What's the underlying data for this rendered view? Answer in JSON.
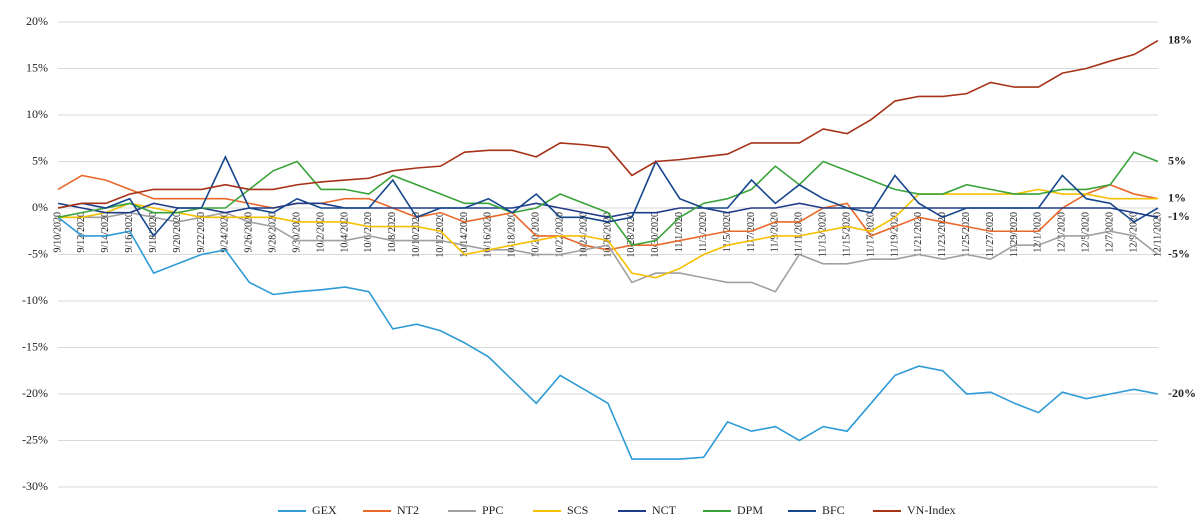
{
  "chart_data": {
    "type": "line",
    "categories": [
      "9/10/2020",
      "9/12/2020",
      "9/14/2020",
      "9/16/2020",
      "9/18/2020",
      "9/20/2020",
      "9/22/2020",
      "9/24/2020",
      "9/26/2020",
      "9/28/2020",
      "9/30/2020",
      "10/2/2020",
      "10/4/2020",
      "10/6/2020",
      "10/8/2020",
      "10/10/2020",
      "10/12/2020",
      "10/14/2020",
      "10/16/2020",
      "10/18/2020",
      "10/20/2020",
      "10/22/2020",
      "10/24/2020",
      "10/26/2020",
      "10/28/2020",
      "10/30/2020",
      "11/1/2020",
      "11/3/2020",
      "11/5/2020",
      "11/7/2020",
      "11/9/2020",
      "11/11/2020",
      "11/13/2020",
      "11/15/2020",
      "11/17/2020",
      "11/19/2020",
      "11/21/2020",
      "11/23/2020",
      "11/25/2020",
      "11/27/2020",
      "11/29/2020",
      "12/1/2020",
      "12/3/2020",
      "12/5/2020",
      "12/7/2020",
      "12/9/2020",
      "12/11/2020"
    ],
    "series": [
      {
        "name": "GEX",
        "color": "#2e9bd6",
        "values": [
          -1,
          -3,
          -3,
          -2.5,
          -7,
          -6,
          -5,
          -4.5,
          -8,
          -9.3,
          -9,
          -8.8,
          -8.5,
          -9,
          -13,
          -12.5,
          -13.2,
          -14.5,
          -16,
          -18.5,
          -21,
          -18,
          -19.5,
          -21,
          -27,
          -27,
          -27,
          -26.8,
          -23,
          -24,
          -23.5,
          -25,
          -23.5,
          -24,
          -21,
          -18,
          -17,
          -17.5,
          -20,
          -19.8,
          -21,
          -22,
          -19.8,
          -20.5,
          -20,
          -19.5,
          -20
        ],
        "value_labels": [
          null,
          null,
          null,
          null,
          null,
          null,
          null,
          null,
          null,
          null,
          null,
          null,
          null,
          null,
          null,
          null,
          null,
          null,
          null,
          null,
          null,
          null,
          null,
          null,
          null,
          null,
          null,
          null,
          null,
          null,
          null,
          null,
          null,
          null,
          null,
          null,
          null,
          null,
          null,
          null,
          null,
          null,
          null,
          null,
          null,
          null,
          "-20%"
        ]
      },
      {
        "name": "NT2",
        "color": "#e8692a",
        "values": [
          2,
          3.5,
          3,
          2,
          1,
          1,
          1,
          1,
          0.5,
          0,
          0.5,
          0.5,
          1,
          1,
          0,
          -1,
          -0.5,
          -1.5,
          -1,
          -0.5,
          -3,
          -3,
          -4,
          -4.5,
          -4,
          -4,
          -3.5,
          -3,
          -2.5,
          -2.5,
          -1.5,
          -1.5,
          0,
          0.5,
          -3,
          -2,
          -1,
          -1.5,
          -2,
          -2.5,
          -2.5,
          -2.5,
          0,
          1.5,
          2.5,
          1.5,
          1
        ],
        "value_labels": [
          null,
          null,
          null,
          null,
          null,
          null,
          null,
          null,
          null,
          null,
          null,
          null,
          null,
          null,
          null,
          null,
          null,
          null,
          null,
          null,
          null,
          null,
          null,
          null,
          null,
          null,
          null,
          null,
          null,
          null,
          null,
          null,
          null,
          null,
          null,
          null,
          null,
          null,
          null,
          null,
          null,
          null,
          null,
          null,
          null,
          null,
          "1%"
        ]
      },
      {
        "name": "PPC",
        "color": "#a0a0a0",
        "values": [
          -1,
          -1,
          -1,
          -0.5,
          -1,
          -1.5,
          -1,
          -0.5,
          -1.5,
          -2,
          -3.5,
          -3.5,
          -3.5,
          -3,
          -3.5,
          -3.5,
          -3.5,
          -4,
          -4.5,
          -4.5,
          -5,
          -5,
          -4.5,
          -4,
          -8,
          -7,
          -7,
          -7.5,
          -8,
          -8,
          -9,
          -5,
          -6,
          -6,
          -5.5,
          -5.5,
          -5,
          -5.5,
          -5,
          -5.5,
          -4,
          -4,
          -3,
          -3,
          -2.5,
          -3,
          -5
        ],
        "value_labels": [
          null,
          null,
          null,
          null,
          null,
          null,
          null,
          null,
          null,
          null,
          null,
          null,
          null,
          null,
          null,
          null,
          null,
          null,
          null,
          null,
          null,
          null,
          null,
          null,
          null,
          null,
          null,
          null,
          null,
          null,
          null,
          null,
          null,
          null,
          null,
          null,
          null,
          null,
          null,
          null,
          null,
          null,
          null,
          null,
          null,
          null,
          "-5%"
        ]
      },
      {
        "name": "SCS",
        "color": "#f5c000",
        "values": [
          -1,
          -1,
          -0.5,
          0.5,
          0,
          -0.5,
          -1,
          -1,
          -1,
          -1,
          -1.5,
          -1.5,
          -1.5,
          -2,
          -2,
          -2,
          -2.5,
          -5,
          -4.5,
          -4,
          -3.5,
          -3,
          -3,
          -3.5,
          -7,
          -7.5,
          -6.5,
          -5,
          -4,
          -3.5,
          -3,
          -3,
          -2.5,
          -2,
          -2.5,
          -1,
          1.5,
          1.5,
          1.5,
          1.5,
          1.5,
          2,
          1.5,
          1.5,
          1,
          1,
          1
        ]
      },
      {
        "name": "NCT",
        "color": "#1f3c88",
        "values": [
          0.5,
          0,
          -0.5,
          -0.5,
          0.5,
          0,
          0,
          -0.5,
          0,
          0,
          0.5,
          0.5,
          0,
          0,
          0,
          0,
          0,
          0,
          0,
          0,
          0.5,
          0,
          -0.5,
          -1,
          -0.5,
          -0.5,
          0,
          0,
          -0.5,
          0,
          0,
          0.5,
          0,
          0,
          0,
          0,
          0,
          0,
          0,
          0,
          0,
          0,
          0,
          0,
          0,
          -0.5,
          -1
        ],
        "value_labels": [
          null,
          null,
          null,
          null,
          null,
          null,
          null,
          null,
          null,
          null,
          null,
          null,
          null,
          null,
          null,
          null,
          null,
          null,
          null,
          null,
          null,
          null,
          null,
          null,
          null,
          null,
          null,
          null,
          null,
          null,
          null,
          null,
          null,
          null,
          null,
          null,
          null,
          null,
          null,
          null,
          null,
          null,
          null,
          null,
          null,
          null,
          "-1%"
        ]
      },
      {
        "name": "DPM",
        "color": "#3aa33a",
        "values": [
          -1,
          -0.5,
          0,
          0.5,
          -0.5,
          -0.5,
          0,
          0,
          2,
          4,
          5,
          2,
          2,
          1.5,
          3.5,
          2.5,
          1.5,
          0.5,
          0.5,
          -0.5,
          0,
          1.5,
          0.5,
          -0.5,
          -4,
          -3.5,
          -1,
          0.5,
          1,
          2,
          4.5,
          2.5,
          5,
          4,
          3,
          2,
          1.5,
          1.5,
          2.5,
          2,
          1.5,
          1.5,
          2,
          2,
          2.5,
          6,
          5
        ],
        "value_labels": [
          null,
          null,
          null,
          null,
          null,
          null,
          null,
          null,
          null,
          null,
          null,
          null,
          null,
          null,
          null,
          null,
          null,
          null,
          null,
          null,
          null,
          null,
          null,
          null,
          null,
          null,
          null,
          null,
          null,
          null,
          null,
          null,
          null,
          null,
          null,
          null,
          null,
          null,
          null,
          null,
          null,
          null,
          null,
          null,
          null,
          null,
          "5%"
        ]
      },
      {
        "name": "BFC",
        "color": "#16468c",
        "values": [
          0,
          0.5,
          0,
          1,
          -3,
          0,
          0,
          5.5,
          0,
          -0.5,
          1,
          0,
          0,
          0,
          3,
          -1,
          0,
          0,
          1,
          -0.5,
          1.5,
          -1,
          -1,
          -1.5,
          -1,
          5,
          1,
          0,
          0,
          3,
          0.5,
          2.5,
          1,
          0,
          -0.5,
          3.5,
          0.5,
          -1,
          0,
          0,
          0,
          0,
          3.5,
          1,
          0.5,
          -1.5,
          0
        ]
      },
      {
        "name": "VN-Index",
        "color": "#a63218",
        "values": [
          0,
          0.5,
          0.5,
          1.5,
          2,
          2,
          2,
          2.5,
          2,
          2,
          2.5,
          2.8,
          3,
          3.2,
          4,
          4.3,
          4.5,
          6,
          6.2,
          6.2,
          5.5,
          7,
          6.8,
          6.5,
          3.5,
          5,
          5.2,
          5.5,
          5.8,
          7,
          7,
          7,
          8.5,
          8,
          9.5,
          11.5,
          12,
          12,
          12.3,
          13.5,
          13,
          13,
          14.5,
          15,
          15.8,
          16.5,
          18
        ],
        "value_labels": [
          null,
          null,
          null,
          null,
          null,
          null,
          null,
          null,
          null,
          null,
          null,
          null,
          null,
          null,
          null,
          null,
          null,
          null,
          null,
          null,
          null,
          null,
          null,
          null,
          null,
          null,
          null,
          null,
          null,
          null,
          null,
          null,
          null,
          null,
          null,
          null,
          null,
          null,
          null,
          null,
          null,
          null,
          null,
          null,
          null,
          null,
          "18%"
        ]
      }
    ],
    "ylim": [
      -30,
      20
    ],
    "yticks": [
      {
        "value": -30,
        "label": "-30%"
      },
      {
        "value": -25,
        "label": "-25%"
      },
      {
        "value": -20,
        "label": "-20%"
      },
      {
        "value": -15,
        "label": "-15%"
      },
      {
        "value": -10,
        "label": "-10%"
      },
      {
        "value": -5,
        "label": "-5%"
      },
      {
        "value": 0,
        "label": "0%"
      },
      {
        "value": 5,
        "label": "5%"
      },
      {
        "value": 10,
        "label": "10%"
      },
      {
        "value": 15,
        "label": "15%"
      },
      {
        "value": 20,
        "label": "20%"
      }
    ],
    "grid": true,
    "legend": "bottom"
  }
}
